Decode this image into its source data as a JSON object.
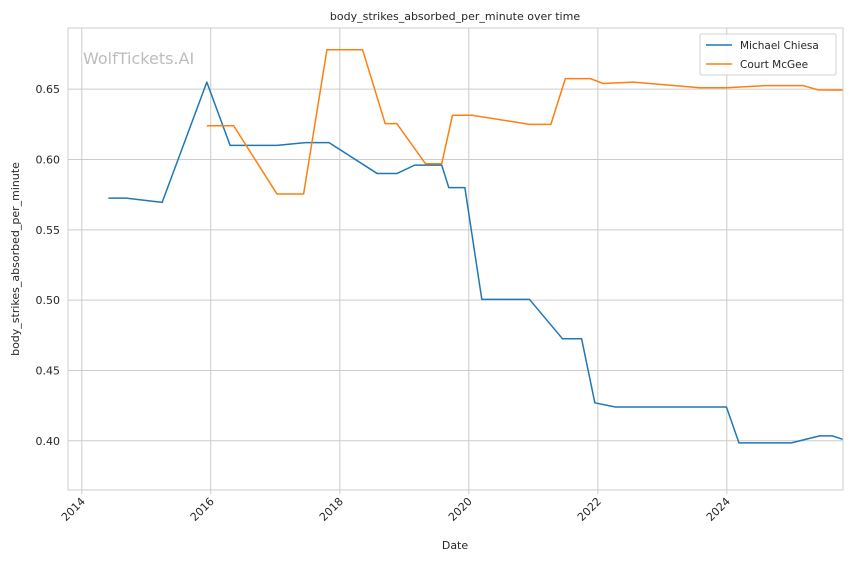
{
  "chart_data": {
    "type": "line",
    "title": "body_strikes_absorbed_per_minute over time",
    "xlabel": "Date",
    "ylabel": "body_strikes_absorbed_per_minute",
    "watermark": "WolfTickets.AI",
    "x_axis": "date",
    "xlim": [
      "2013-10-15",
      "2025-10-20"
    ],
    "ylim": [
      0.365,
      0.6935
    ],
    "x_ticks": [
      "2014",
      "2016",
      "2018",
      "2020",
      "2022",
      "2024"
    ],
    "y_ticks": [
      "0.40",
      "0.45",
      "0.50",
      "0.55",
      "0.60",
      "0.65"
    ],
    "y_tick_values": [
      0.4,
      0.45,
      0.5,
      0.55,
      0.6,
      0.65
    ],
    "grid": true,
    "legend_position": "top-right",
    "series": [
      {
        "name": "Michael Chiesa",
        "color": "#1f77b4",
        "points": [
          [
            "2014-06-01",
            0.5725
          ],
          [
            "2014-09-10",
            0.5725
          ],
          [
            "2015-04-01",
            0.5695
          ],
          [
            "2015-12-10",
            0.655
          ],
          [
            "2016-04-20",
            0.61
          ],
          [
            "2017-01-10",
            0.61
          ],
          [
            "2017-06-20",
            0.612
          ],
          [
            "2017-11-01",
            0.612
          ],
          [
            "2018-08-01",
            0.59
          ],
          [
            "2018-11-20",
            0.59
          ],
          [
            "2019-03-01",
            0.596
          ],
          [
            "2019-08-01",
            0.596
          ],
          [
            "2019-09-10",
            0.58
          ],
          [
            "2019-12-10",
            0.58
          ],
          [
            "2020-03-15",
            0.5005
          ],
          [
            "2020-12-10",
            0.5005
          ],
          [
            "2021-06-15",
            0.4725
          ],
          [
            "2021-10-01",
            0.4725
          ],
          [
            "2021-12-15",
            0.427
          ],
          [
            "2022-04-10",
            0.424
          ],
          [
            "2023-12-30",
            0.424
          ],
          [
            "2024-03-10",
            0.3985
          ],
          [
            "2025-01-01",
            0.3985
          ],
          [
            "2025-06-10",
            0.4035
          ],
          [
            "2025-08-20",
            0.4035
          ],
          [
            "2025-11-01",
            0.4005
          ],
          [
            "2026-06-01",
            0.3805
          ]
        ]
      },
      {
        "name": "Court McGee",
        "color": "#ff7f0e",
        "points": [
          [
            "2015-12-10",
            0.624
          ],
          [
            "2016-05-10",
            0.624
          ],
          [
            "2017-01-10",
            0.5755
          ],
          [
            "2017-06-10",
            0.5755
          ],
          [
            "2017-10-20",
            0.678
          ],
          [
            "2018-05-10",
            0.678
          ],
          [
            "2018-09-15",
            0.6255
          ],
          [
            "2018-11-20",
            0.6255
          ],
          [
            "2019-05-01",
            0.597
          ],
          [
            "2019-08-01",
            0.597
          ],
          [
            "2019-10-01",
            0.6315
          ],
          [
            "2020-01-20",
            0.6315
          ],
          [
            "2020-12-10",
            0.625
          ],
          [
            "2021-04-10",
            0.625
          ],
          [
            "2021-07-01",
            0.6575
          ],
          [
            "2021-11-20",
            0.6575
          ],
          [
            "2022-02-01",
            0.654
          ],
          [
            "2022-07-20",
            0.655
          ],
          [
            "2023-08-01",
            0.651
          ],
          [
            "2023-12-30",
            0.651
          ],
          [
            "2024-08-01",
            0.6525
          ],
          [
            "2025-03-10",
            0.6525
          ],
          [
            "2025-06-01",
            0.6495
          ],
          [
            "2026-06-01",
            0.649
          ]
        ]
      }
    ]
  }
}
